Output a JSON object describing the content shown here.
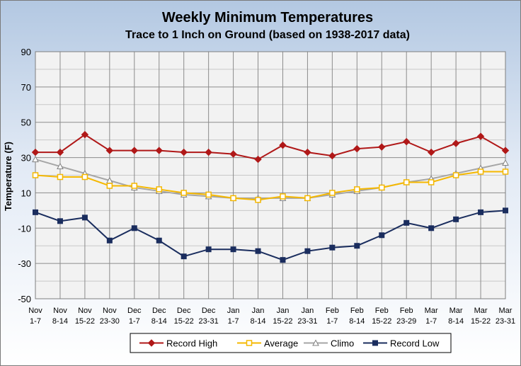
{
  "chart_data": {
    "type": "line",
    "title": "Weekly Minimum Temperatures",
    "subtitle": "Trace to 1 Inch on Ground (based on 1938-2017 data)",
    "ylabel": "Temperature (F)",
    "xlabel": "",
    "ylim": [
      -50,
      90
    ],
    "yticks": [
      90,
      70,
      50,
      30,
      10,
      -10,
      -30,
      -50
    ],
    "grid": true,
    "legend_position": "bottom",
    "categories": [
      [
        "Nov",
        "1-7"
      ],
      [
        "Nov",
        "8-14"
      ],
      [
        "Nov",
        "15-22"
      ],
      [
        "Nov",
        "23-30"
      ],
      [
        "Dec",
        "1-7"
      ],
      [
        "Dec",
        "8-14"
      ],
      [
        "Dec",
        "15-22"
      ],
      [
        "Dec",
        "23-31"
      ],
      [
        "Jan",
        "1-7"
      ],
      [
        "Jan",
        "8-14"
      ],
      [
        "Jan",
        "15-22"
      ],
      [
        "Jan",
        "23-31"
      ],
      [
        "Feb",
        "1-7"
      ],
      [
        "Feb",
        "8-14"
      ],
      [
        "Feb",
        "15-22"
      ],
      [
        "Feb",
        "23-29"
      ],
      [
        "Mar",
        "1-7"
      ],
      [
        "Mar",
        "8-14"
      ],
      [
        "Mar",
        "15-22"
      ],
      [
        "Mar",
        "23-31"
      ]
    ],
    "series": [
      {
        "name": "Record High",
        "color": "#b01818",
        "marker": "diamond",
        "values": [
          33,
          33,
          43,
          34,
          34,
          34,
          33,
          33,
          32,
          29,
          37,
          33,
          31,
          35,
          36,
          39,
          33,
          38,
          42,
          34
        ]
      },
      {
        "name": "Average",
        "color": "#f5b800",
        "marker": "square-open",
        "values": [
          20,
          19,
          19,
          14,
          14,
          12,
          10,
          9,
          7,
          6,
          8,
          7,
          10,
          12,
          13,
          16,
          16,
          20,
          22,
          22
        ]
      },
      {
        "name": "Climo",
        "color": "#a6a6a6",
        "marker": "triangle",
        "values": [
          29,
          25,
          21,
          17,
          13,
          11,
          9,
          8,
          7,
          7,
          7,
          7,
          9,
          11,
          13,
          16,
          18,
          21,
          24,
          27
        ]
      },
      {
        "name": "Record Low",
        "color": "#1a2d5e",
        "marker": "square",
        "values": [
          -1,
          -6,
          -4,
          -17,
          -10,
          -17,
          -26,
          -22,
          -22,
          -23,
          -28,
          -23,
          -21,
          -20,
          -14,
          -7,
          -10,
          -5,
          -1,
          0
        ]
      }
    ]
  }
}
